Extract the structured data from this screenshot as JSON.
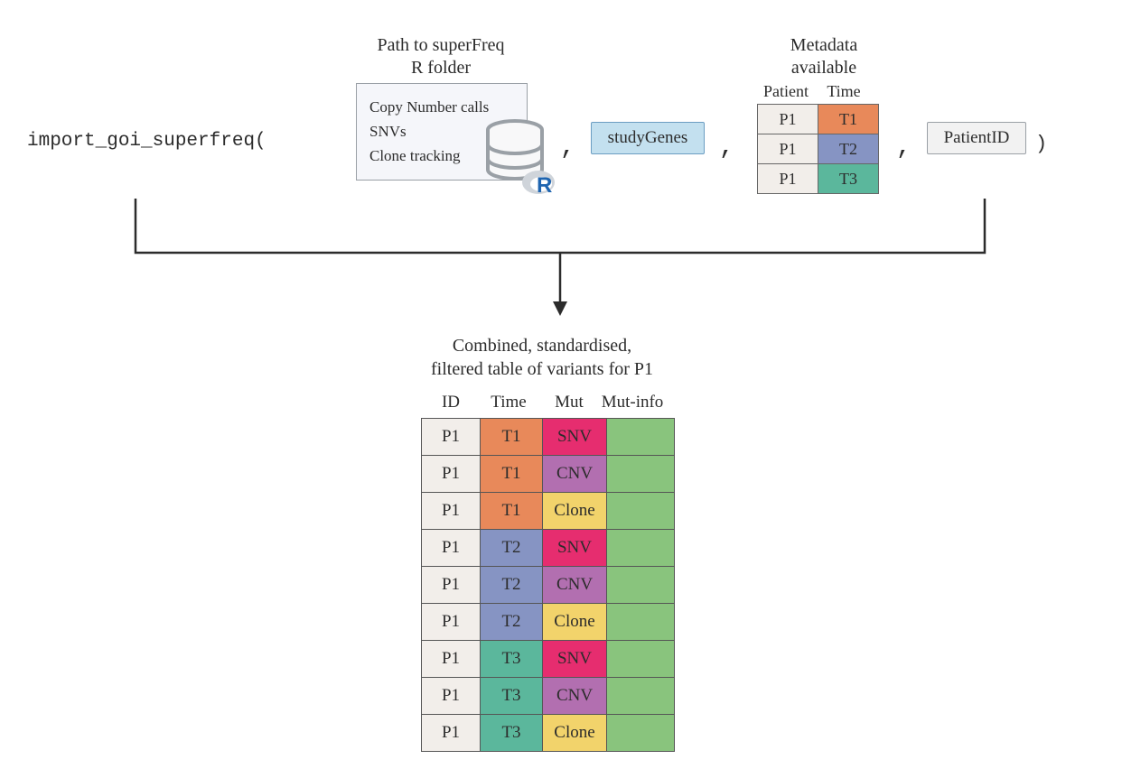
{
  "colors": {
    "id_bg": "#f2eeea",
    "t1": "#e8895a",
    "t2": "#8694c3",
    "t3": "#5bb79c",
    "snv": "#e62d6f",
    "cnv": "#b26fb0",
    "clone": "#f2d36b",
    "info": "#89c47d",
    "studygenes_bg": "#c3e0ef",
    "folder_bg": "#f5f6fa",
    "patientid_bg": "#f2f2f2",
    "border_grey": "#9aa0a6",
    "text": "#2c2c2c",
    "r_blue": "#1f65b0"
  },
  "func": {
    "name": "import_goi_superfreq(",
    "close_paren": ")"
  },
  "folder": {
    "title_line1": "Path to superFreq",
    "title_line2": "R folder",
    "items": [
      "Copy Number calls",
      "SNVs",
      "Clone tracking"
    ]
  },
  "studygenes": {
    "label": "studyGenes"
  },
  "metadata": {
    "title_line1": "Metadata",
    "title_line2": "available",
    "header_patient": "Patient",
    "header_time": "Time",
    "rows": [
      {
        "patient": "P1",
        "time": "T1",
        "time_color": "#e8895a"
      },
      {
        "patient": "P1",
        "time": "T2",
        "time_color": "#8694c3"
      },
      {
        "patient": "P1",
        "time": "T3",
        "time_color": "#5bb79c"
      }
    ]
  },
  "patientid": {
    "label": "PatientID"
  },
  "output": {
    "title_line1": "Combined, standardised,",
    "title_line2": "filtered table of variants for P1",
    "headers": {
      "id": "ID",
      "time": "Time",
      "mut": "Mut",
      "info": "Mut-info"
    },
    "rows": [
      {
        "id": "P1",
        "time": "T1",
        "time_color": "#e8895a",
        "mut": "SNV",
        "mut_color": "#e62d6f",
        "info_color": "#89c47d"
      },
      {
        "id": "P1",
        "time": "T1",
        "time_color": "#e8895a",
        "mut": "CNV",
        "mut_color": "#b26fb0",
        "info_color": "#89c47d"
      },
      {
        "id": "P1",
        "time": "T1",
        "time_color": "#e8895a",
        "mut": "Clone",
        "mut_color": "#f2d36b",
        "info_color": "#89c47d"
      },
      {
        "id": "P1",
        "time": "T2",
        "time_color": "#8694c3",
        "mut": "SNV",
        "mut_color": "#e62d6f",
        "info_color": "#89c47d"
      },
      {
        "id": "P1",
        "time": "T2",
        "time_color": "#8694c3",
        "mut": "CNV",
        "mut_color": "#b26fb0",
        "info_color": "#89c47d"
      },
      {
        "id": "P1",
        "time": "T2",
        "time_color": "#8694c3",
        "mut": "Clone",
        "mut_color": "#f2d36b",
        "info_color": "#89c47d"
      },
      {
        "id": "P1",
        "time": "T3",
        "time_color": "#5bb79c",
        "mut": "SNV",
        "mut_color": "#e62d6f",
        "info_color": "#89c47d"
      },
      {
        "id": "P1",
        "time": "T3",
        "time_color": "#5bb79c",
        "mut": "CNV",
        "mut_color": "#b26fb0",
        "info_color": "#89c47d"
      },
      {
        "id": "P1",
        "time": "T3",
        "time_color": "#5bb79c",
        "mut": "Clone",
        "mut_color": "#f2d36b",
        "info_color": "#89c47d"
      }
    ]
  }
}
